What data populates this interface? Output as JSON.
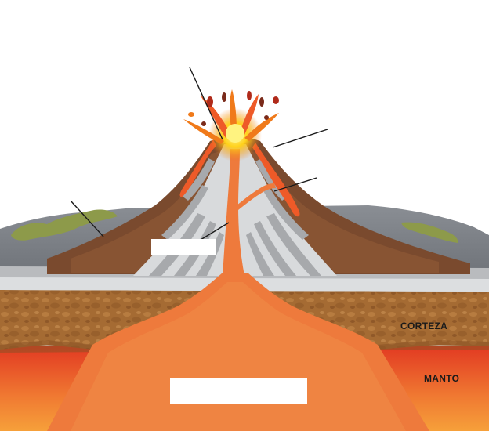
{
  "labels": {
    "crust": "CORTEZA",
    "mantle": "MANTO"
  },
  "colors": {
    "mantle": "#e8502a",
    "magma": "#ee7a3c",
    "crust": "#a46a32",
    "ground": "#7e8288",
    "ash_layer_light": "#d8dadc",
    "ash_layer_dark": "#a7a9ac",
    "lava_flow": "#7a3b22",
    "vegetation": "#8d9a4a",
    "eruption_core": "#ffe44d",
    "leader_line": "#1a1a1a"
  }
}
